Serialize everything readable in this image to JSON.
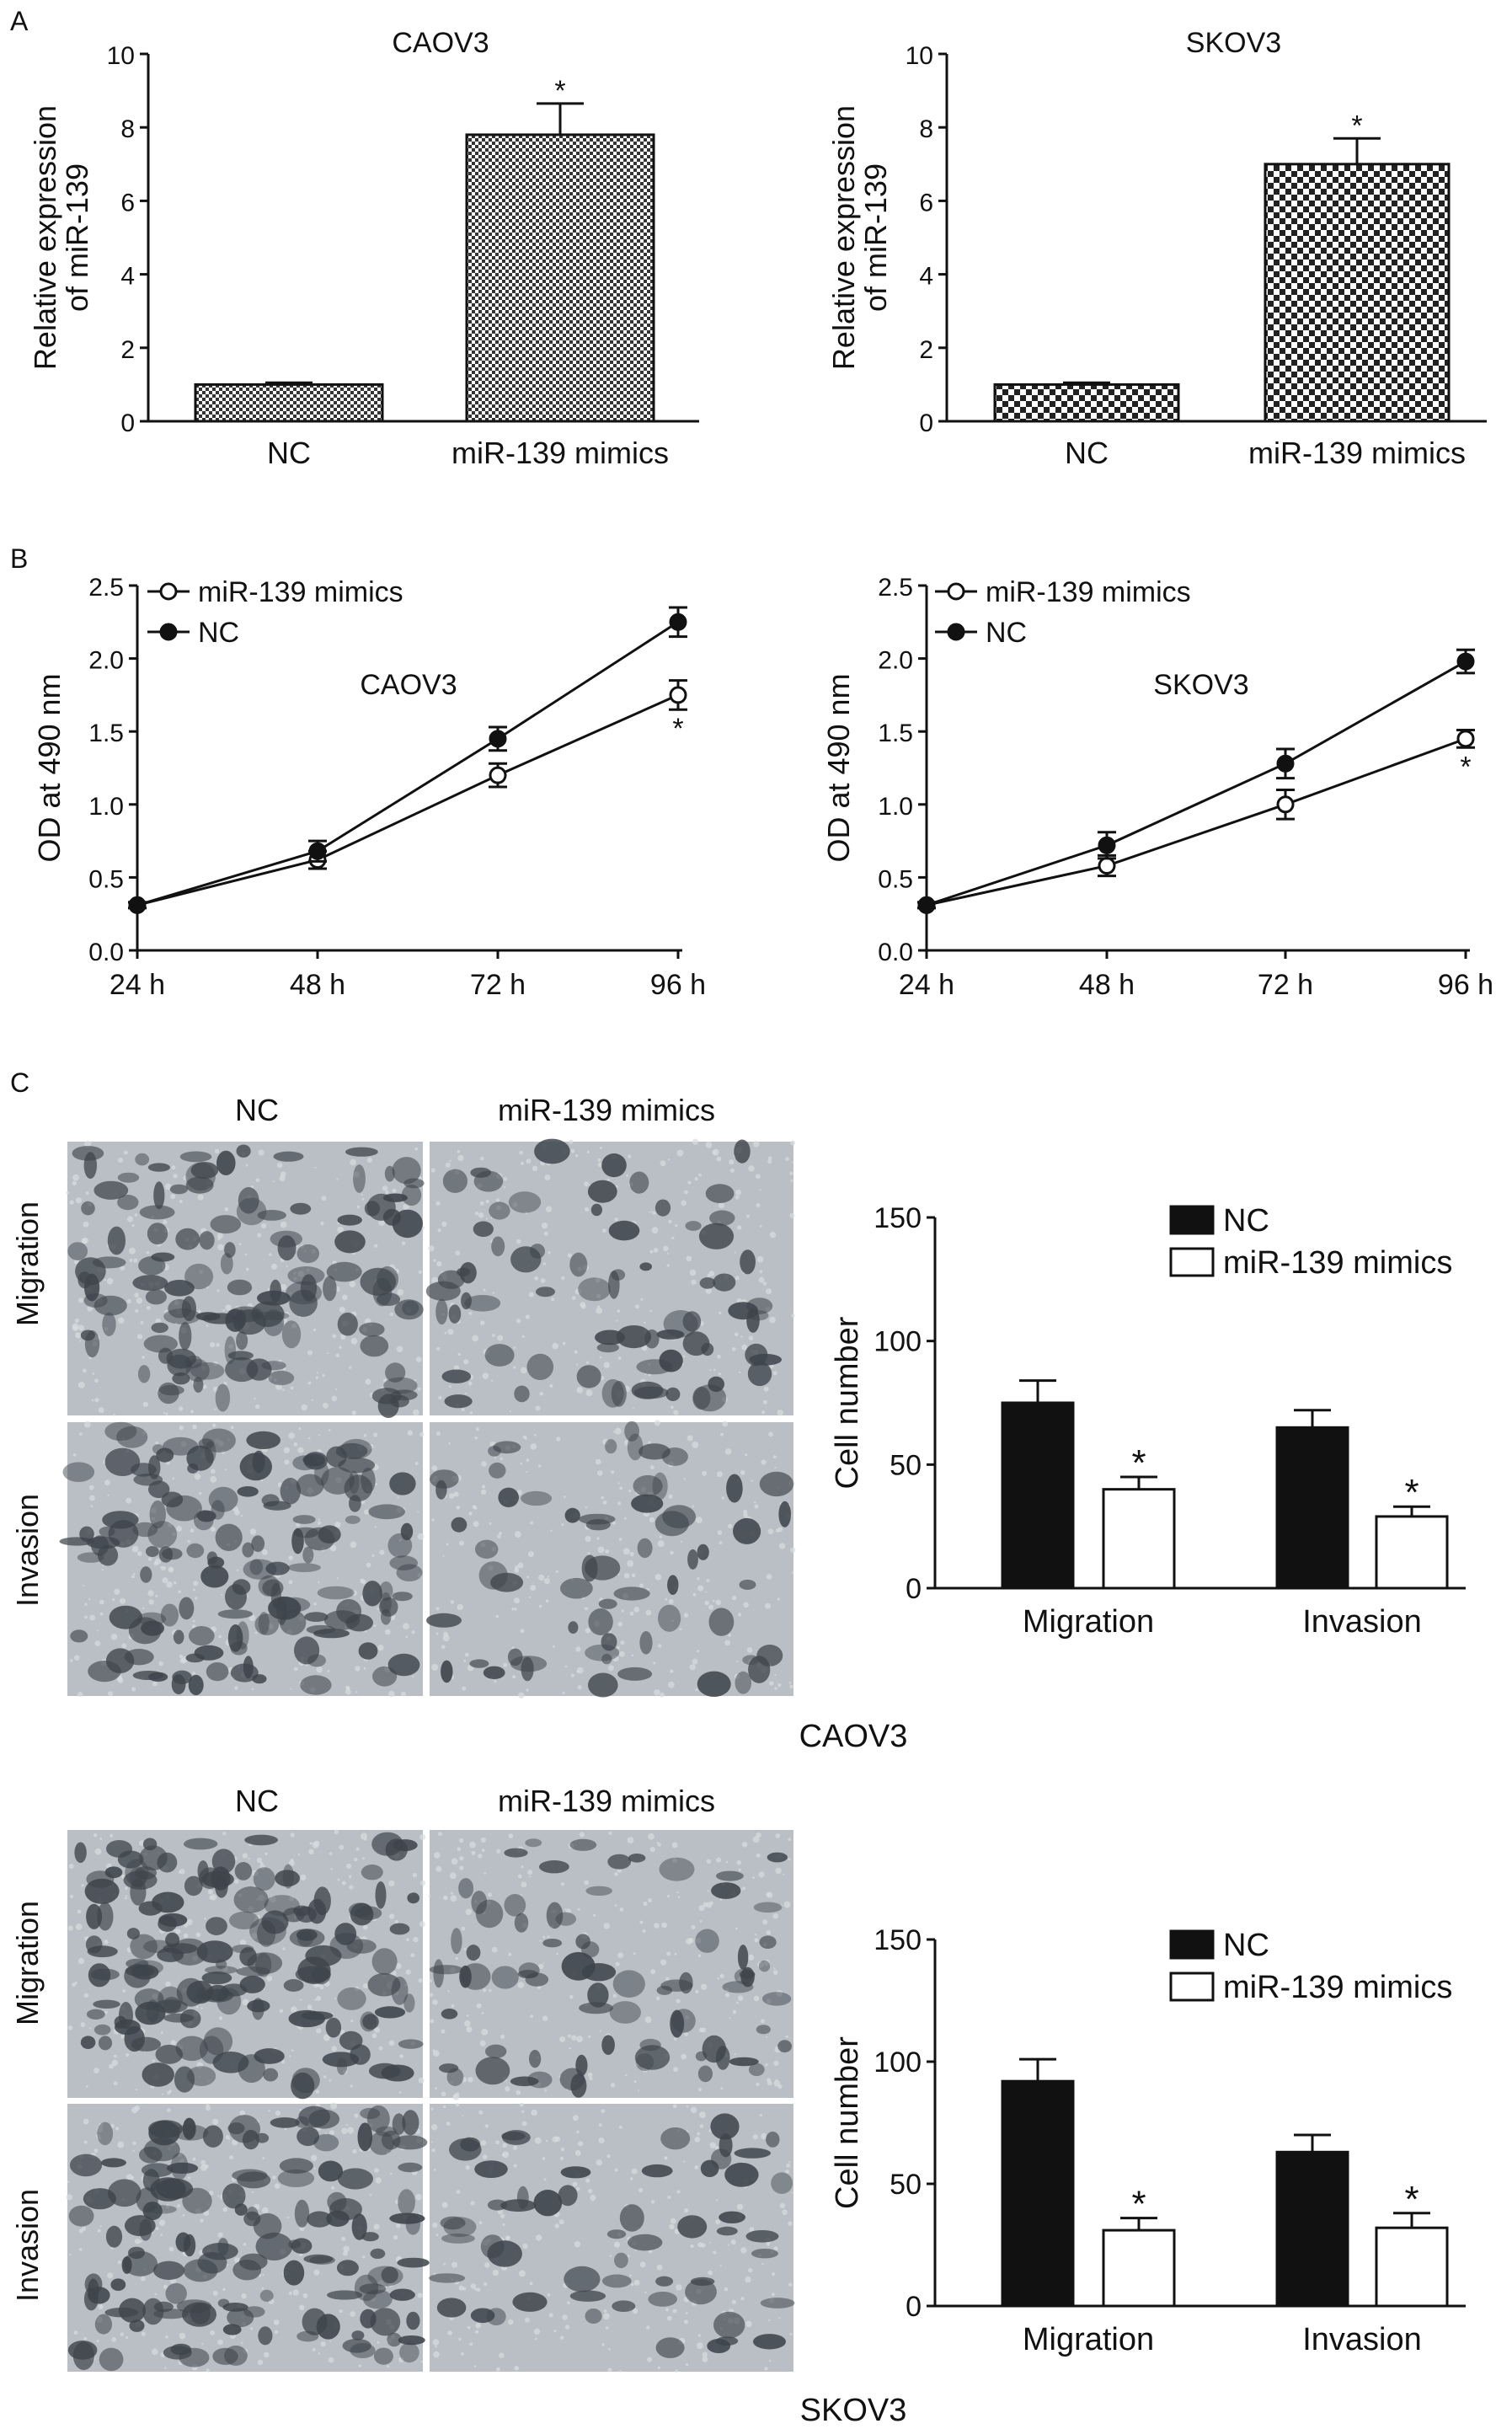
{
  "panel_labels": {
    "a": "A",
    "b": "B",
    "c": "C"
  },
  "colors": {
    "axis": "#111111",
    "nc_bar": "#111111",
    "mimic_bar": "#ffffff",
    "micro_bg": "#b9bfc4",
    "micro_cell": "#3e444b"
  },
  "micrographs": {
    "col_nc": "NC",
    "col_mimics": "miR-139 mimics",
    "row_migration": "Migration",
    "row_invasion": "Invasion",
    "cell_line_caov3": "CAOV3",
    "cell_line_skov3": "SKOV3"
  },
  "chart_data": [
    {
      "id": "a_caov3",
      "type": "bar",
      "title": "CAOV3",
      "ylabel": "Relative expression of miR-139",
      "ylabel_lines": [
        "Relative expression",
        "of miR-139"
      ],
      "xlabel": "",
      "ylim": [
        0,
        10
      ],
      "yticks": [
        "0",
        "2",
        "4",
        "6",
        "8",
        "10"
      ],
      "categories": [
        "NC",
        "miR-139 mimics"
      ],
      "values": [
        1.0,
        7.8
      ],
      "errors": [
        0.05,
        0.85
      ],
      "significance": [
        "",
        "*"
      ],
      "pattern": "dense-check"
    },
    {
      "id": "a_skov3",
      "type": "bar",
      "title": "SKOV3",
      "ylabel": "Relative expression of miR-139",
      "ylabel_lines": [
        "Relative expression",
        "of miR-139"
      ],
      "xlabel": "",
      "ylim": [
        0,
        10
      ],
      "yticks": [
        "0",
        "2",
        "4",
        "6",
        "8",
        "10"
      ],
      "categories": [
        "NC",
        "miR-139 mimics"
      ],
      "values": [
        1.0,
        7.0
      ],
      "errors": [
        0.05,
        0.7
      ],
      "significance": [
        "",
        "*"
      ],
      "pattern": "coarse-check"
    },
    {
      "id": "b_caov3",
      "type": "line",
      "title": "CAOV3",
      "ylabel": "OD at 490 nm",
      "xlabel": "",
      "ylim": [
        0,
        2.5
      ],
      "yticks": [
        "0.0",
        "0.5",
        "1.0",
        "1.5",
        "2.0",
        "2.5"
      ],
      "x": [
        "24 h",
        "48 h",
        "72 h",
        "96 h"
      ],
      "legend_position": "top-left",
      "series": [
        {
          "name": "miR-139 mimics",
          "marker": "open",
          "values": [
            0.31,
            0.62,
            1.2,
            1.75
          ],
          "errors": [
            0.02,
            0.06,
            0.08,
            0.1
          ]
        },
        {
          "name": "NC",
          "marker": "filled",
          "values": [
            0.31,
            0.68,
            1.45,
            2.25
          ],
          "errors": [
            0.02,
            0.07,
            0.08,
            0.1
          ]
        }
      ],
      "significance_text": "*"
    },
    {
      "id": "b_skov3",
      "type": "line",
      "title": "SKOV3",
      "ylabel": "OD at 490 nm",
      "xlabel": "",
      "ylim": [
        0,
        2.5
      ],
      "yticks": [
        "0.0",
        "0.5",
        "1.0",
        "1.5",
        "2.0",
        "2.5"
      ],
      "x": [
        "24 h",
        "48 h",
        "72 h",
        "96 h"
      ],
      "legend_position": "top-left",
      "series": [
        {
          "name": "miR-139 mimics",
          "marker": "open",
          "values": [
            0.31,
            0.58,
            1.0,
            1.45
          ],
          "errors": [
            0.02,
            0.07,
            0.1,
            0.06
          ]
        },
        {
          "name": "NC",
          "marker": "filled",
          "values": [
            0.31,
            0.72,
            1.28,
            1.98
          ],
          "errors": [
            0.02,
            0.09,
            0.1,
            0.08
          ]
        }
      ],
      "significance_text": "*"
    },
    {
      "id": "c_caov3",
      "type": "bar",
      "title": "",
      "ylabel": "Cell number",
      "xlabel": "",
      "ylim": [
        0,
        150
      ],
      "yticks": [
        "0",
        "50",
        "100",
        "150"
      ],
      "categories": [
        "Migration",
        "Invasion"
      ],
      "legend_position": "top-right",
      "series": [
        {
          "name": "NC",
          "values": [
            75,
            65
          ],
          "errors": [
            9,
            7
          ],
          "significance": [
            "",
            ""
          ]
        },
        {
          "name": "miR-139 mimics",
          "values": [
            40,
            29
          ],
          "errors": [
            5,
            4
          ],
          "significance": [
            "*",
            "*"
          ]
        }
      ]
    },
    {
      "id": "c_skov3",
      "type": "bar",
      "title": "",
      "ylabel": "Cell number",
      "xlabel": "",
      "ylim": [
        0,
        150
      ],
      "yticks": [
        "0",
        "50",
        "100",
        "150"
      ],
      "categories": [
        "Migration",
        "Invasion"
      ],
      "legend_position": "top-right",
      "series": [
        {
          "name": "NC",
          "values": [
            92,
            63
          ],
          "errors": [
            9,
            7
          ],
          "significance": [
            "",
            ""
          ]
        },
        {
          "name": "miR-139 mimics",
          "values": [
            31,
            32
          ],
          "errors": [
            5,
            6
          ],
          "significance": [
            "*",
            "*"
          ]
        }
      ]
    }
  ]
}
